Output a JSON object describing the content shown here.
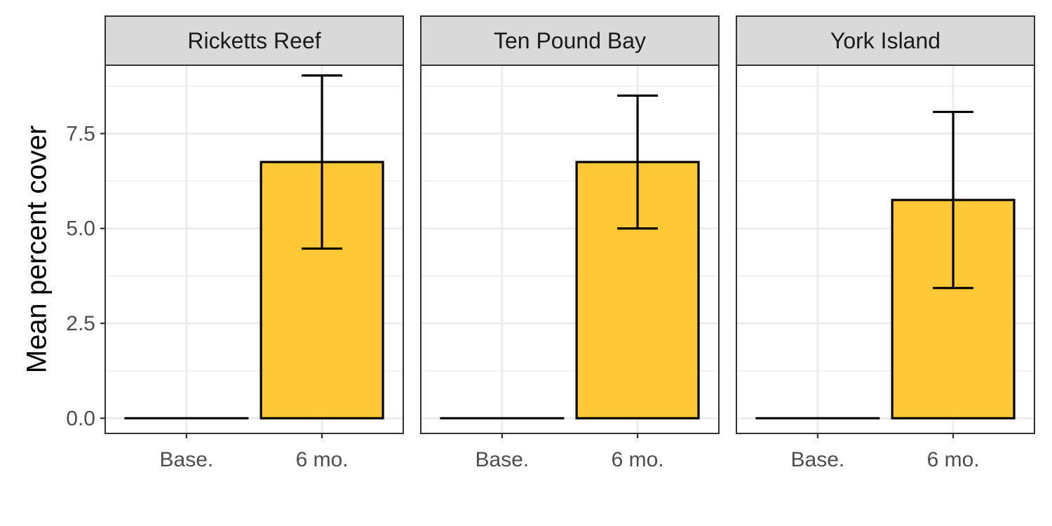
{
  "chart_data": {
    "type": "bar",
    "ylabel": "Mean percent cover",
    "xlabel": "",
    "categories": [
      "Base.",
      "6 mo."
    ],
    "ylim": [
      -0.4,
      9.3
    ],
    "yticks": [
      0.0,
      2.5,
      5.0,
      7.5
    ],
    "ytick_labels": [
      "0.0",
      "2.5",
      "5.0",
      "7.5"
    ],
    "grid": true,
    "legend": "none",
    "bar_color": "#FFC837",
    "panels": [
      {
        "name": "Ricketts Reef",
        "values": [
          0.0,
          6.75
        ],
        "error_low": [
          0.0,
          4.47
        ],
        "error_high": [
          0.0,
          9.03
        ]
      },
      {
        "name": "Ten Pound Bay",
        "values": [
          0.0,
          6.75
        ],
        "error_low": [
          0.0,
          5.0
        ],
        "error_high": [
          0.0,
          8.5
        ]
      },
      {
        "name": "York Island",
        "values": [
          0.0,
          5.75
        ],
        "error_low": [
          0.0,
          3.43
        ],
        "error_high": [
          0.0,
          8.07
        ]
      }
    ]
  }
}
